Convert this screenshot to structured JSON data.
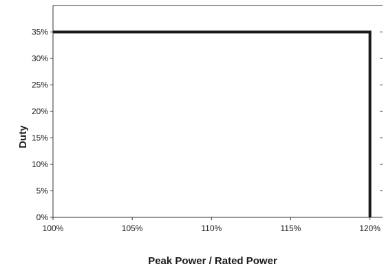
{
  "chart_data": {
    "type": "line",
    "title": "",
    "xlabel": "Peak Power / Rated Power",
    "ylabel": "Duty",
    "x_ticks": [
      "100%",
      "105%",
      "110%",
      "115%",
      "120%"
    ],
    "y_ticks": [
      "0%",
      "5%",
      "10%",
      "15%",
      "20%",
      "25%",
      "30%",
      "35%"
    ],
    "xlim": [
      100,
      120.8
    ],
    "ylim": [
      0,
      40
    ],
    "grid": false,
    "right_axis_ticks": true,
    "series": [
      {
        "color": "#1a1a1a",
        "points": [
          {
            "x": 100,
            "y": 35
          },
          {
            "x": 120,
            "y": 35
          },
          {
            "x": 120,
            "y": 0
          }
        ]
      }
    ]
  }
}
